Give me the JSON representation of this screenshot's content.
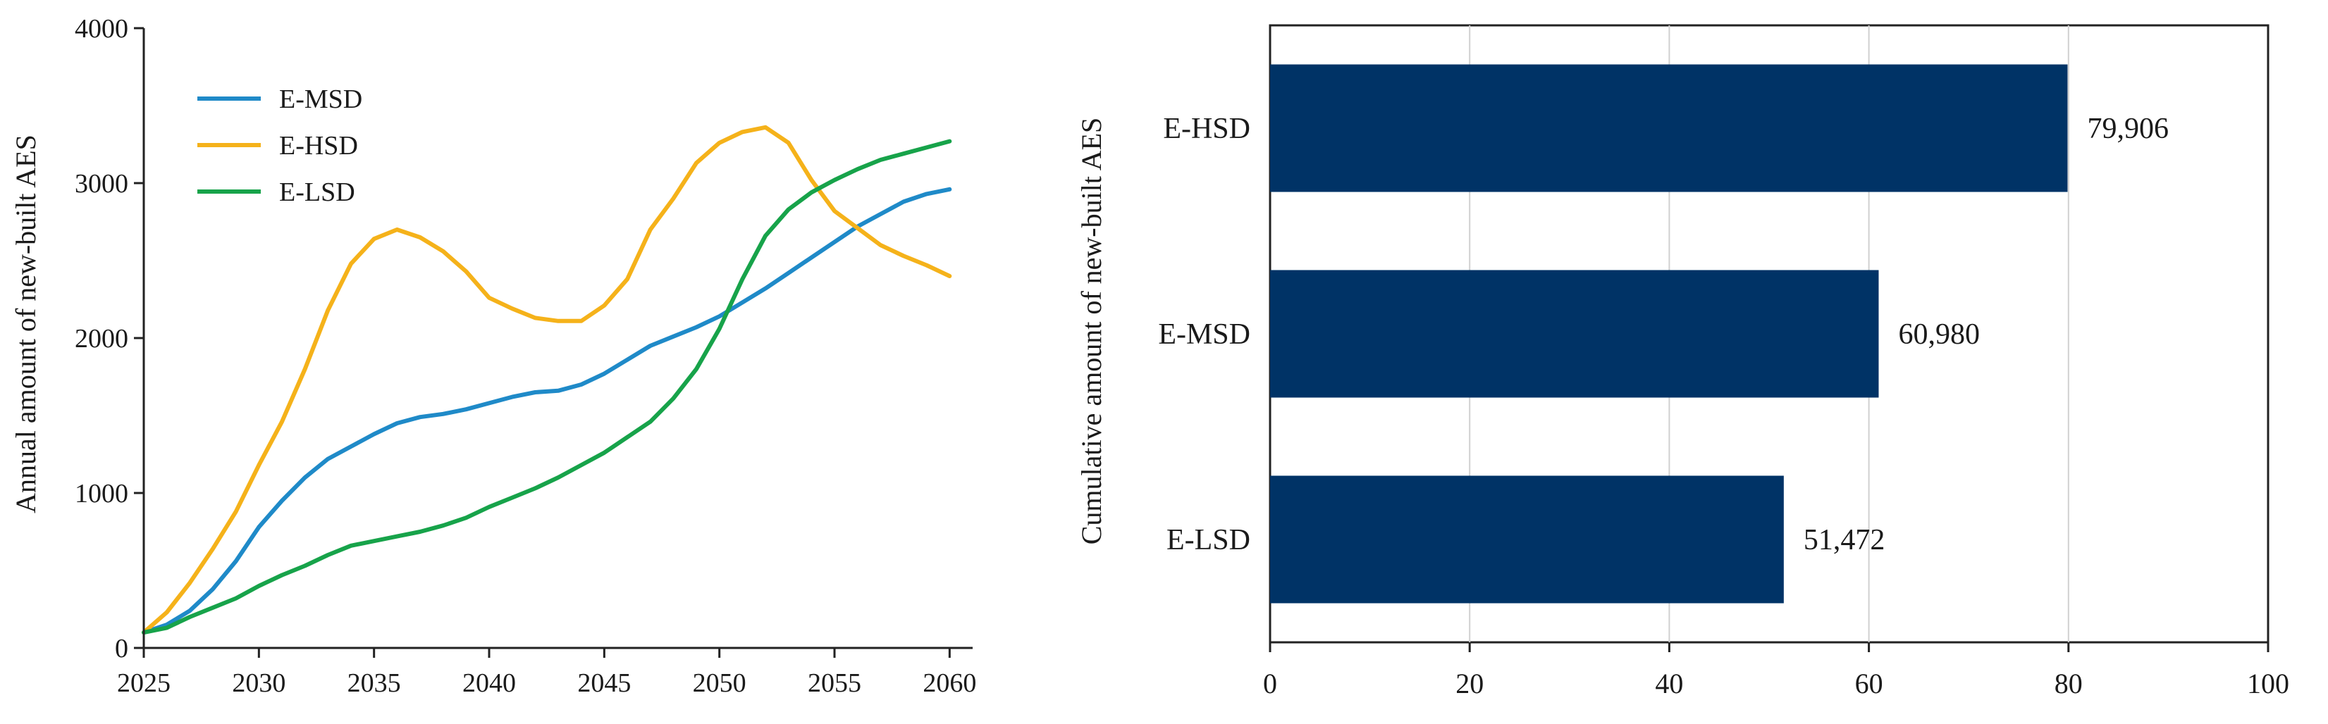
{
  "chart_data": [
    {
      "type": "line",
      "title": "",
      "xlabel": "",
      "ylabel": "Annual amount of new-built AES",
      "xlim": [
        2025,
        2061
      ],
      "ylim": [
        0,
        4000
      ],
      "xticks": [
        "2025",
        "2030",
        "2035",
        "2040",
        "2045",
        "2050",
        "2055",
        "2060"
      ],
      "yticks": [
        "0",
        "1000",
        "2000",
        "3000",
        "4000"
      ],
      "grid": false,
      "legend_position": "top-left",
      "series": [
        {
          "name": "E-MSD",
          "color": "#1f8ac8",
          "x": [
            2025,
            2026,
            2027,
            2028,
            2029,
            2030,
            2031,
            2032,
            2033,
            2034,
            2035,
            2036,
            2037,
            2038,
            2039,
            2040,
            2041,
            2042,
            2043,
            2044,
            2045,
            2046,
            2047,
            2048,
            2049,
            2050,
            2051,
            2052,
            2053,
            2054,
            2055,
            2056,
            2057,
            2058,
            2059,
            2060
          ],
          "y": [
            100,
            150,
            240,
            380,
            560,
            780,
            950,
            1100,
            1220,
            1300,
            1380,
            1450,
            1490,
            1510,
            1540,
            1580,
            1620,
            1650,
            1660,
            1700,
            1770,
            1860,
            1950,
            2010,
            2070,
            2140,
            2230,
            2320,
            2420,
            2520,
            2620,
            2720,
            2800,
            2880,
            2930,
            2960
          ]
        },
        {
          "name": "E-HSD",
          "color": "#f5b21a",
          "x": [
            2025,
            2026,
            2027,
            2028,
            2029,
            2030,
            2031,
            2032,
            2033,
            2034,
            2035,
            2036,
            2037,
            2038,
            2039,
            2040,
            2041,
            2042,
            2043,
            2044,
            2045,
            2046,
            2047,
            2048,
            2049,
            2050,
            2051,
            2052,
            2053,
            2054,
            2055,
            2056,
            2057,
            2058,
            2059,
            2060
          ],
          "y": [
            100,
            230,
            420,
            640,
            880,
            1180,
            1460,
            1800,
            2180,
            2480,
            2640,
            2700,
            2650,
            2560,
            2430,
            2260,
            2190,
            2130,
            2110,
            2110,
            2210,
            2380,
            2700,
            2900,
            3130,
            3260,
            3330,
            3360,
            3260,
            3020,
            2820,
            2710,
            2600,
            2530,
            2470,
            2400
          ]
        },
        {
          "name": "E-LSD",
          "color": "#17a34a",
          "x": [
            2025,
            2026,
            2027,
            2028,
            2029,
            2030,
            2031,
            2032,
            2033,
            2034,
            2035,
            2036,
            2037,
            2038,
            2039,
            2040,
            2041,
            2042,
            2043,
            2044,
            2045,
            2046,
            2047,
            2048,
            2049,
            2050,
            2051,
            2052,
            2053,
            2054,
            2055,
            2056,
            2057,
            2058,
            2059,
            2060
          ],
          "y": [
            100,
            130,
            200,
            260,
            320,
            400,
            470,
            530,
            600,
            660,
            690,
            720,
            750,
            790,
            840,
            910,
            970,
            1030,
            1100,
            1180,
            1260,
            1360,
            1460,
            1610,
            1800,
            2060,
            2380,
            2660,
            2830,
            2940,
            3020,
            3090,
            3150,
            3190,
            3230,
            3270
          ]
        }
      ]
    },
    {
      "type": "bar",
      "orientation": "horizontal",
      "title": "",
      "xlabel": "",
      "ylabel": "Cumulative amount of new-built AES",
      "xlim": [
        0,
        100
      ],
      "xticks": [
        "0",
        "20",
        "40",
        "60",
        "80",
        "100"
      ],
      "grid": true,
      "bar_color": "#003366",
      "categories": [
        "E-HSD",
        "E-MSD",
        "E-LSD"
      ],
      "values": [
        79.906,
        60.98,
        51.472
      ],
      "value_labels": [
        "79,906",
        "60,980",
        "51,472"
      ]
    }
  ]
}
